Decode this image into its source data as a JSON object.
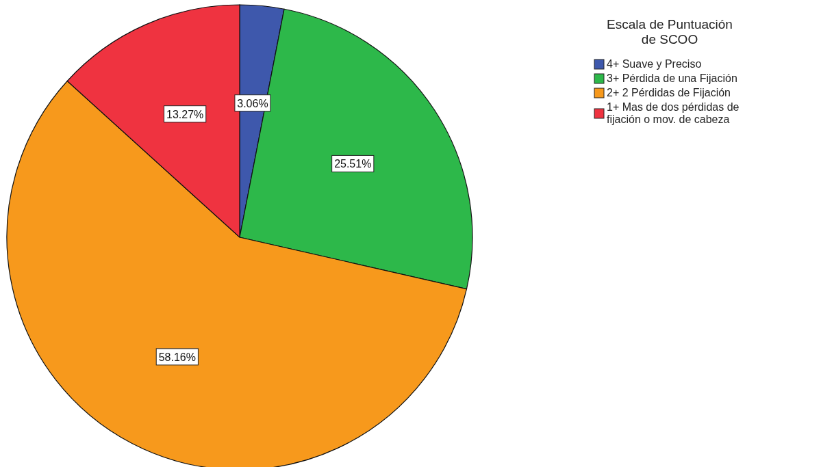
{
  "chart_data": {
    "type": "pie",
    "legend_title": "Escala de Puntuación de SCOO",
    "legend": "top right",
    "value_labels": [
      "3.06%",
      "25.51%",
      "58.16%",
      "13.27%"
    ],
    "categories": [
      "4+ Suave y Preciso",
      "3+ Pérdida de una Fijación",
      "2+ 2 Pérdidas de Fijación",
      "1+ Mas de dos pérdidas de fijación o mov. de cabeza"
    ],
    "values": [
      3.06,
      25.51,
      58.16,
      13.27
    ],
    "colors": [
      "#3e58ac",
      "#2db84a",
      "#f7991c",
      "#ef3340"
    ]
  }
}
